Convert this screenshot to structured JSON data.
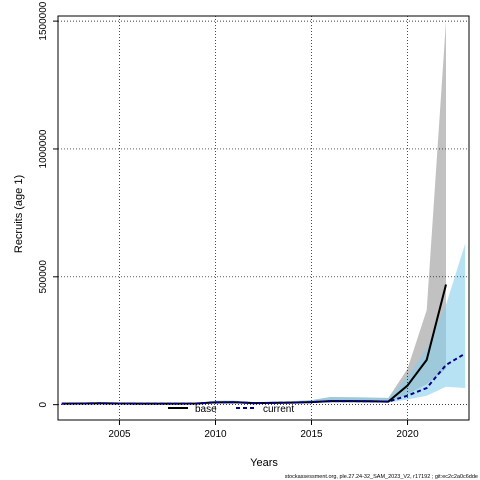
{
  "chart_data": {
    "type": "line",
    "xlabel": "Years",
    "ylabel": "Recruits (age 1)",
    "xlim": [
      2001.8,
      2023.2
    ],
    "ylim": [
      -60000,
      1520000
    ],
    "x_ticks": [
      "2005",
      "2010",
      "2015",
      "2020"
    ],
    "x_tick_values": [
      2005,
      2010,
      2015,
      2020
    ],
    "y_ticks": [
      "0",
      "500000",
      "1000000",
      "1500000"
    ],
    "y_tick_values": [
      0,
      500000,
      1000000,
      1500000
    ],
    "grid": true,
    "legend_position": "bottom-center",
    "x": [
      2002,
      2003,
      2004,
      2005,
      2006,
      2007,
      2008,
      2009,
      2010,
      2011,
      2012,
      2013,
      2014,
      2015,
      2016,
      2017,
      2018,
      2019,
      2020,
      2021,
      2022,
      2023
    ],
    "series": [
      {
        "name": "base",
        "color": "#000000",
        "line_style": "solid",
        "band_color": "#bebebe",
        "values": [
          4000,
          4500,
          5500,
          4500,
          4000,
          4000,
          4000,
          4500,
          9000,
          9500,
          6000,
          7000,
          8000,
          10000,
          14000,
          14000,
          13000,
          12000,
          75000,
          175000,
          470000,
          null
        ],
        "lower": [
          2500,
          3000,
          3500,
          3000,
          2500,
          2500,
          2500,
          3000,
          6000,
          6500,
          4000,
          4500,
          5500,
          7000,
          10000,
          10000,
          9000,
          8000,
          40000,
          80000,
          140000,
          null
        ],
        "upper": [
          6000,
          6500,
          7500,
          6500,
          6000,
          6000,
          6000,
          7000,
          15000,
          15000,
          10000,
          11000,
          13000,
          18000,
          30000,
          29000,
          28000,
          26000,
          140000,
          370000,
          1500000,
          null
        ]
      },
      {
        "name": "current",
        "color": "#00008b",
        "line_style": "dashed",
        "band_color": "#87ceeb",
        "values": [
          4000,
          4500,
          5500,
          4500,
          4000,
          4000,
          4000,
          4500,
          9000,
          9500,
          6000,
          7000,
          8000,
          10000,
          14000,
          14000,
          13000,
          12000,
          35000,
          65000,
          155000,
          200000
        ],
        "lower": [
          2500,
          3000,
          3500,
          3000,
          2500,
          2500,
          2500,
          3000,
          6000,
          6500,
          4000,
          4500,
          5500,
          7000,
          10000,
          10000,
          9000,
          8000,
          20000,
          35000,
          70000,
          65000
        ],
        "upper": [
          6000,
          6500,
          7500,
          6500,
          6000,
          6000,
          6000,
          7000,
          15000,
          15000,
          10000,
          11000,
          13000,
          18000,
          30000,
          29000,
          28000,
          26000,
          110000,
          220000,
          390000,
          630000
        ]
      }
    ]
  },
  "footer": "stockassessment.org, ple.27.24-32_SAM_2023_V2, r17192 ; git:ec2c2a0c6dde"
}
